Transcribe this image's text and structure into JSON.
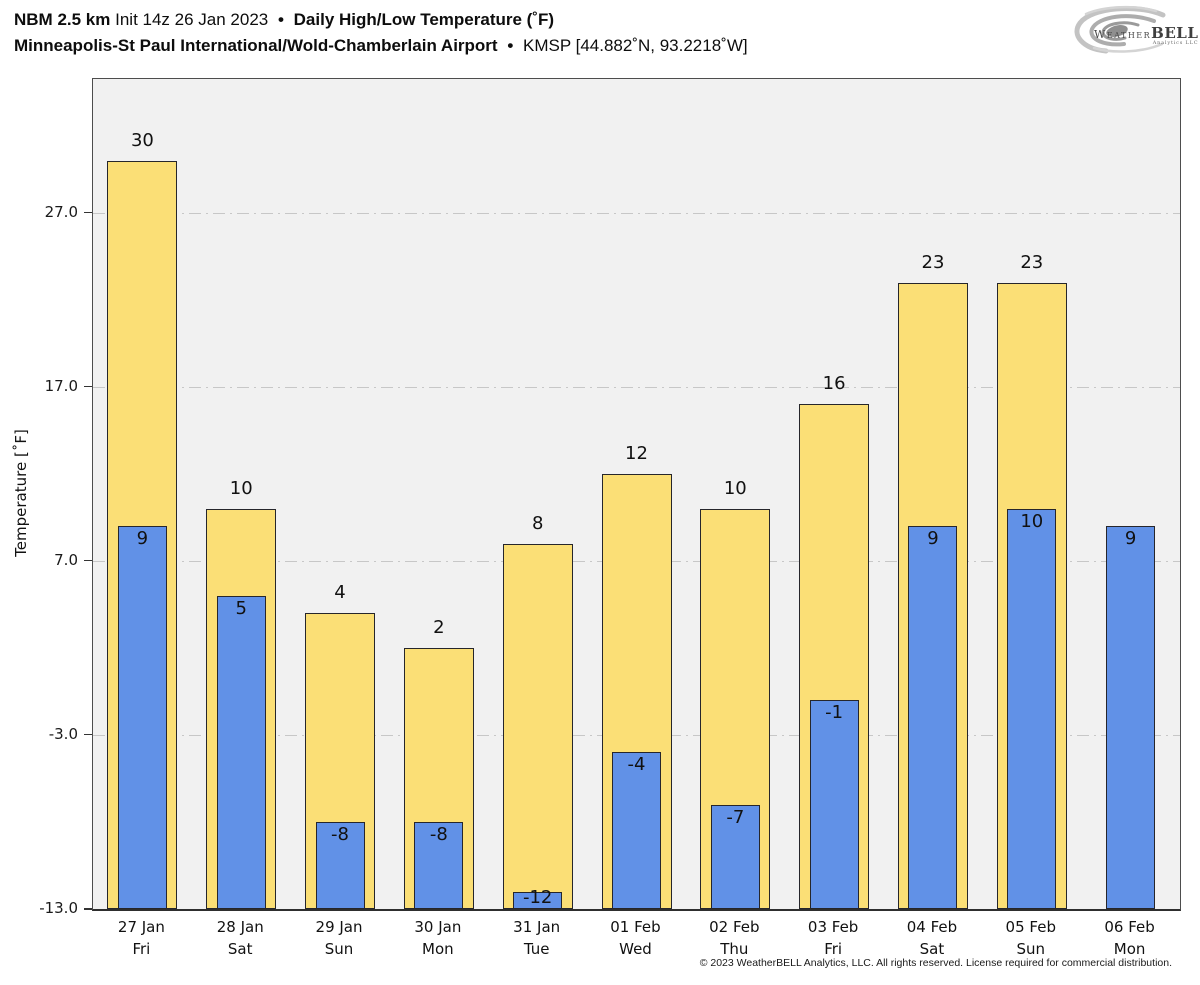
{
  "header": {
    "title_line1": {
      "model": "NBM 2.5 km",
      "init": "Init 14z 26 Jan 2023",
      "separator": "•",
      "product": "Daily High/Low Temperature (˚F)"
    },
    "title_line2": {
      "station": "Minneapolis-St Paul International/Wold-Chamberlain Airport",
      "separator": "•",
      "station_id": "KMSP [44.882˚N, 93.2218˚W]"
    },
    "logo": {
      "brand_weather": "Weather",
      "brand_bell": "BELL",
      "brand_sub": "Analytics LLC"
    }
  },
  "chart_data": {
    "type": "bar",
    "title": "Daily High/Low Temperature (˚F)",
    "ylabel": "Temperature [˚F]",
    "ylim": [
      -13,
      34.7
    ],
    "yticks": [
      27.0,
      17.0,
      7.0,
      -3.0,
      -13.0
    ],
    "grid": {
      "axis": "y",
      "style": "dash-dot",
      "color": "#c7c7c7",
      "on": true
    },
    "legend": "none",
    "plot_bg": "#f1f1f1",
    "categories": [
      {
        "date": "27 Jan",
        "day": "Fri"
      },
      {
        "date": "28 Jan",
        "day": "Sat"
      },
      {
        "date": "29 Jan",
        "day": "Sun"
      },
      {
        "date": "30 Jan",
        "day": "Mon"
      },
      {
        "date": "31 Jan",
        "day": "Tue"
      },
      {
        "date": "01 Feb",
        "day": "Wed"
      },
      {
        "date": "02 Feb",
        "day": "Thu"
      },
      {
        "date": "03 Feb",
        "day": "Fri"
      },
      {
        "date": "04 Feb",
        "day": "Sat"
      },
      {
        "date": "05 Feb",
        "day": "Sun"
      },
      {
        "date": "06 Feb",
        "day": "Mon"
      }
    ],
    "series": [
      {
        "name": "High",
        "color": "#FBDF76",
        "border": "#26262b",
        "values": [
          30,
          10,
          4,
          2,
          8,
          12,
          10,
          16,
          23,
          23,
          null
        ]
      },
      {
        "name": "Low",
        "color": "#6191E7",
        "border": "#26262b",
        "values": [
          9,
          5,
          -8,
          -8,
          -12,
          -4,
          -7,
          -1,
          9,
          10,
          9
        ]
      }
    ]
  },
  "footer": {
    "copyright": "© 2023 WeatherBELL Analytics, LLC. All rights reserved. License required for commercial distribution."
  }
}
